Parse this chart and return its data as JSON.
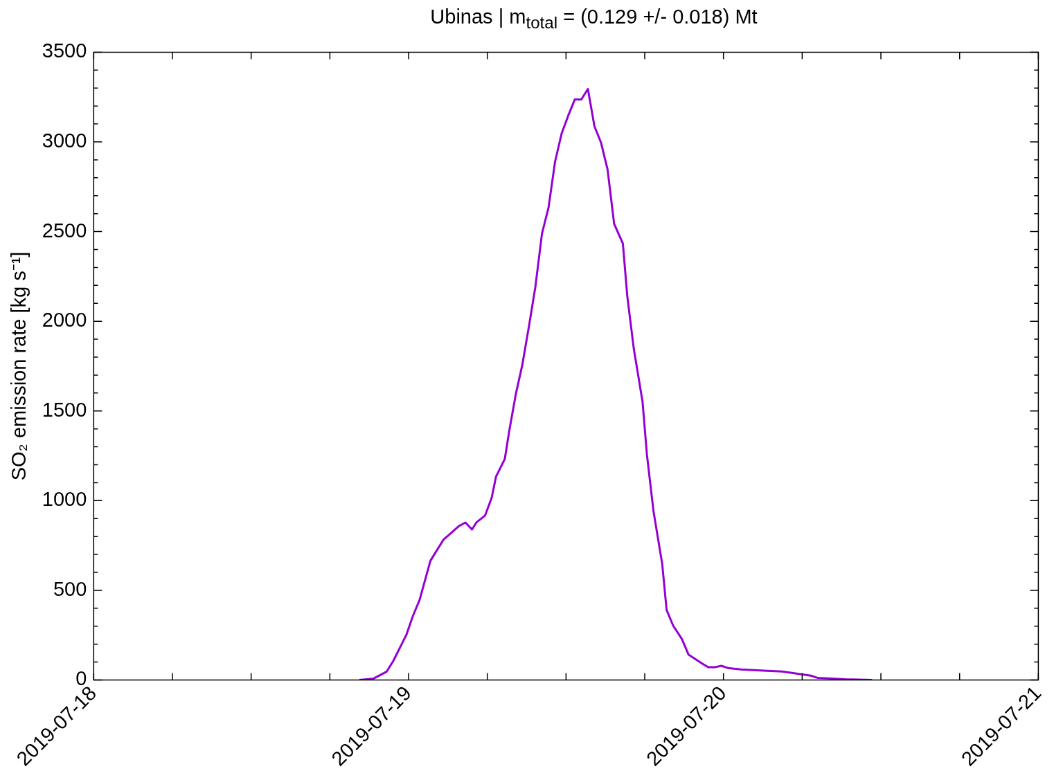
{
  "chart_data": {
    "type": "line",
    "title": "Ubinas | m$_{total}$ = (0.129 +/- 0.018) Mt",
    "ylabel": "SO₂ emission rate [kg s⁻¹]",
    "x": [
      "2019-07-18T20:15",
      "2019-07-18T21:20",
      "2019-07-18T22:20",
      "2019-07-18T22:50",
      "2019-07-18T23:50",
      "2019-07-19T00:20",
      "2019-07-19T00:50",
      "2019-07-19T01:40",
      "2019-07-19T02:40",
      "2019-07-19T03:10",
      "2019-07-19T03:50",
      "2019-07-19T04:20",
      "2019-07-19T04:50",
      "2019-07-19T05:10",
      "2019-07-19T05:50",
      "2019-07-19T06:20",
      "2019-07-19T06:40",
      "2019-07-19T07:20",
      "2019-07-19T07:40",
      "2019-07-19T08:10",
      "2019-07-19T08:40",
      "2019-07-19T09:10",
      "2019-07-19T09:40",
      "2019-07-19T10:10",
      "2019-07-19T10:40",
      "2019-07-19T11:10",
      "2019-07-19T11:40",
      "2019-07-19T12:10",
      "2019-07-19T12:40",
      "2019-07-19T13:10",
      "2019-07-19T13:40",
      "2019-07-19T14:10",
      "2019-07-19T14:40",
      "2019-07-19T15:10",
      "2019-07-19T15:40",
      "2019-07-19T16:20",
      "2019-07-19T16:40",
      "2019-07-19T17:10",
      "2019-07-19T17:50",
      "2019-07-19T18:10",
      "2019-07-19T18:40",
      "2019-07-19T19:20",
      "2019-07-19T19:40",
      "2019-07-19T20:10",
      "2019-07-19T20:50",
      "2019-07-19T21:20",
      "2019-07-19T21:50",
      "2019-07-19T22:20",
      "2019-07-19T22:50",
      "2019-07-19T23:20",
      "2019-07-19T23:50",
      "2019-07-20T00:20",
      "2019-07-20T00:50",
      "2019-07-20T01:20",
      "2019-07-20T02:20",
      "2019-07-20T03:20",
      "2019-07-20T04:30",
      "2019-07-20T05:40",
      "2019-07-20T06:40",
      "2019-07-20T07:10",
      "2019-07-20T08:20",
      "2019-07-20T09:20",
      "2019-07-20T11:20"
    ],
    "series": [
      {
        "color": "#9400d3",
        "values": [
          0,
          8,
          47,
          106,
          252,
          358,
          445,
          665,
          783,
          815,
          858,
          878,
          839,
          878,
          917,
          1016,
          1134,
          1232,
          1386,
          1591,
          1756,
          1969,
          2193,
          2488,
          2634,
          2890,
          3047,
          3146,
          3236,
          3236,
          3295,
          3087,
          2996,
          2846,
          2543,
          2433,
          2142,
          1846,
          1551,
          1256,
          941,
          646,
          390,
          303,
          228,
          142,
          118,
          94,
          71,
          71,
          79,
          67,
          63,
          59,
          55,
          51,
          47,
          35,
          24,
          12,
          8,
          4,
          0
        ]
      }
    ],
    "xlim": [
      "2019-07-18",
      "2019-07-21"
    ],
    "xticks": [
      "2019-07-18",
      {
        "value": "2019-07-18T06:00",
        "label": null
      },
      {
        "value": "2019-07-18T12:00",
        "label": null
      },
      {
        "value": "2019-07-18T18:00",
        "label": null
      },
      "2019-07-19",
      {
        "value": "2019-07-19T06:00",
        "label": null
      },
      {
        "value": "2019-07-19T12:00",
        "label": null
      },
      {
        "value": "2019-07-19T18:00",
        "label": null
      },
      "2019-07-20",
      {
        "value": "2019-07-20T06:00",
        "label": null
      },
      {
        "value": "2019-07-20T12:00",
        "label": null
      },
      {
        "value": "2019-07-20T18:00",
        "label": null
      },
      "2019-07-21"
    ],
    "ylim": [
      0,
      3500
    ],
    "yticks": [
      0,
      {
        "value": 100,
        "label": null
      },
      {
        "value": 200,
        "label": null
      },
      {
        "value": 300,
        "label": null
      },
      {
        "value": 400,
        "label": null
      },
      500,
      {
        "value": 600,
        "label": null
      },
      {
        "value": 700,
        "label": null
      },
      {
        "value": 800,
        "label": null
      },
      {
        "value": 900,
        "label": null
      },
      1000,
      {
        "value": 1100,
        "label": null
      },
      {
        "value": 1200,
        "label": null
      },
      {
        "value": 1300,
        "label": null
      },
      {
        "value": 1400,
        "label": null
      },
      1500,
      {
        "value": 1600,
        "label": null
      },
      {
        "value": 1700,
        "label": null
      },
      {
        "value": 1800,
        "label": null
      },
      {
        "value": 1900,
        "label": null
      },
      2000,
      {
        "value": 2100,
        "label": null
      },
      {
        "value": 2200,
        "label": null
      },
      {
        "value": 2300,
        "label": null
      },
      {
        "value": 2400,
        "label": null
      },
      2500,
      {
        "value": 2600,
        "label": null
      },
      {
        "value": 2700,
        "label": null
      },
      {
        "value": 2800,
        "label": null
      },
      {
        "value": 2900,
        "label": null
      },
      3000,
      {
        "value": 3100,
        "label": null
      },
      {
        "value": 3200,
        "label": null
      },
      {
        "value": 3300,
        "label": null
      },
      {
        "value": 3400,
        "label": null
      },
      3500
    ],
    "grid": false,
    "legend": false,
    "line_style": "solid",
    "marker": "none"
  }
}
